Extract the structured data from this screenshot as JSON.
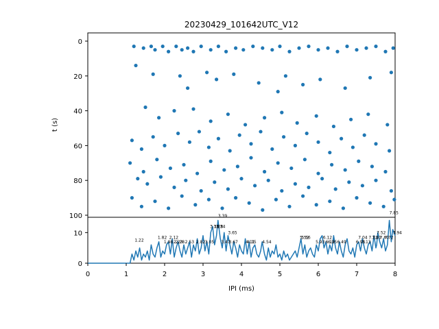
{
  "chart_data": [
    {
      "type": "scatter",
      "title": "20230429_101642UTC_V12",
      "xlabel": "",
      "ylabel": "t (s)",
      "xlim": [
        0,
        8
      ],
      "ylim": [
        100,
        0
      ],
      "y_inverted": true,
      "yticks": [
        "0",
        "20",
        "40",
        "60",
        "80",
        "100"
      ],
      "x_range_of_points": [
        1.1,
        8.0
      ],
      "color": "#1f77b4",
      "description_of_density": "dense bands near t=0-10, t=20-30, t=38-98",
      "points": [
        {
          "x": 1.2,
          "y": 3
        },
        {
          "x": 1.45,
          "y": 4
        },
        {
          "x": 1.65,
          "y": 3
        },
        {
          "x": 1.75,
          "y": 5
        },
        {
          "x": 1.95,
          "y": 3
        },
        {
          "x": 2.1,
          "y": 6
        },
        {
          "x": 2.3,
          "y": 3
        },
        {
          "x": 2.45,
          "y": 5
        },
        {
          "x": 2.6,
          "y": 4
        },
        {
          "x": 2.75,
          "y": 6
        },
        {
          "x": 2.95,
          "y": 3
        },
        {
          "x": 3.2,
          "y": 5
        },
        {
          "x": 3.4,
          "y": 3
        },
        {
          "x": 3.6,
          "y": 6
        },
        {
          "x": 3.85,
          "y": 4
        },
        {
          "x": 4.05,
          "y": 5
        },
        {
          "x": 4.3,
          "y": 3
        },
        {
          "x": 4.55,
          "y": 4
        },
        {
          "x": 4.8,
          "y": 5
        },
        {
          "x": 5.0,
          "y": 3
        },
        {
          "x": 5.25,
          "y": 6
        },
        {
          "x": 5.5,
          "y": 4
        },
        {
          "x": 5.75,
          "y": 3
        },
        {
          "x": 6.0,
          "y": 5
        },
        {
          "x": 6.25,
          "y": 4
        },
        {
          "x": 6.5,
          "y": 6
        },
        {
          "x": 6.75,
          "y": 3
        },
        {
          "x": 7.0,
          "y": 5
        },
        {
          "x": 7.25,
          "y": 4
        },
        {
          "x": 7.5,
          "y": 3
        },
        {
          "x": 7.75,
          "y": 6
        },
        {
          "x": 7.95,
          "y": 4
        },
        {
          "x": 1.25,
          "y": 14
        },
        {
          "x": 1.7,
          "y": 19
        },
        {
          "x": 2.4,
          "y": 20
        },
        {
          "x": 3.1,
          "y": 18
        },
        {
          "x": 3.35,
          "y": 22
        },
        {
          "x": 3.8,
          "y": 19
        },
        {
          "x": 4.45,
          "y": 24
        },
        {
          "x": 5.15,
          "y": 20
        },
        {
          "x": 5.6,
          "y": 25
        },
        {
          "x": 6.05,
          "y": 22
        },
        {
          "x": 6.7,
          "y": 27
        },
        {
          "x": 7.35,
          "y": 21
        },
        {
          "x": 7.9,
          "y": 18
        },
        {
          "x": 2.6,
          "y": 27
        },
        {
          "x": 4.95,
          "y": 29
        },
        {
          "x": 1.5,
          "y": 38
        },
        {
          "x": 1.85,
          "y": 44
        },
        {
          "x": 2.25,
          "y": 40
        },
        {
          "x": 2.75,
          "y": 39
        },
        {
          "x": 3.2,
          "y": 46
        },
        {
          "x": 3.65,
          "y": 42
        },
        {
          "x": 4.1,
          "y": 48
        },
        {
          "x": 4.6,
          "y": 44
        },
        {
          "x": 5.05,
          "y": 41
        },
        {
          "x": 5.45,
          "y": 47
        },
        {
          "x": 5.95,
          "y": 43
        },
        {
          "x": 6.4,
          "y": 49
        },
        {
          "x": 6.85,
          "y": 45
        },
        {
          "x": 7.3,
          "y": 42
        },
        {
          "x": 7.8,
          "y": 48
        },
        {
          "x": 1.15,
          "y": 57
        },
        {
          "x": 1.4,
          "y": 62
        },
        {
          "x": 1.7,
          "y": 55
        },
        {
          "x": 2.0,
          "y": 60
        },
        {
          "x": 2.35,
          "y": 53
        },
        {
          "x": 2.65,
          "y": 58
        },
        {
          "x": 2.9,
          "y": 52
        },
        {
          "x": 3.15,
          "y": 61
        },
        {
          "x": 3.4,
          "y": 56
        },
        {
          "x": 3.7,
          "y": 63
        },
        {
          "x": 3.95,
          "y": 54
        },
        {
          "x": 4.25,
          "y": 59
        },
        {
          "x": 4.5,
          "y": 52
        },
        {
          "x": 4.8,
          "y": 62
        },
        {
          "x": 5.1,
          "y": 55
        },
        {
          "x": 5.4,
          "y": 60
        },
        {
          "x": 5.7,
          "y": 53
        },
        {
          "x": 6.0,
          "y": 58
        },
        {
          "x": 6.3,
          "y": 64
        },
        {
          "x": 6.6,
          "y": 56
        },
        {
          "x": 6.9,
          "y": 61
        },
        {
          "x": 7.2,
          "y": 54
        },
        {
          "x": 7.5,
          "y": 59
        },
        {
          "x": 7.85,
          "y": 63
        },
        {
          "x": 1.1,
          "y": 70
        },
        {
          "x": 1.45,
          "y": 75
        },
        {
          "x": 1.8,
          "y": 68
        },
        {
          "x": 2.15,
          "y": 73
        },
        {
          "x": 2.5,
          "y": 71
        },
        {
          "x": 2.85,
          "y": 76
        },
        {
          "x": 3.2,
          "y": 69
        },
        {
          "x": 3.55,
          "y": 74
        },
        {
          "x": 3.9,
          "y": 72
        },
        {
          "x": 4.25,
          "y": 67
        },
        {
          "x": 4.6,
          "y": 75
        },
        {
          "x": 4.95,
          "y": 70
        },
        {
          "x": 5.3,
          "y": 73
        },
        {
          "x": 5.65,
          "y": 68
        },
        {
          "x": 6.0,
          "y": 76
        },
        {
          "x": 6.35,
          "y": 71
        },
        {
          "x": 6.7,
          "y": 74
        },
        {
          "x": 7.05,
          "y": 69
        },
        {
          "x": 7.4,
          "y": 72
        },
        {
          "x": 7.75,
          "y": 75
        },
        {
          "x": 1.3,
          "y": 79
        },
        {
          "x": 1.55,
          "y": 82
        },
        {
          "x": 1.9,
          "y": 78
        },
        {
          "x": 2.25,
          "y": 84
        },
        {
          "x": 2.55,
          "y": 80
        },
        {
          "x": 2.95,
          "y": 86
        },
        {
          "x": 3.3,
          "y": 81
        },
        {
          "x": 3.65,
          "y": 85
        },
        {
          "x": 4.0,
          "y": 79
        },
        {
          "x": 4.35,
          "y": 83
        },
        {
          "x": 4.7,
          "y": 80
        },
        {
          "x": 5.05,
          "y": 86
        },
        {
          "x": 5.4,
          "y": 82
        },
        {
          "x": 5.75,
          "y": 84
        },
        {
          "x": 6.1,
          "y": 79
        },
        {
          "x": 6.45,
          "y": 85
        },
        {
          "x": 6.8,
          "y": 81
        },
        {
          "x": 7.15,
          "y": 83
        },
        {
          "x": 7.5,
          "y": 80
        },
        {
          "x": 7.9,
          "y": 86
        },
        {
          "x": 1.15,
          "y": 90
        },
        {
          "x": 1.4,
          "y": 95
        },
        {
          "x": 1.75,
          "y": 92
        },
        {
          "x": 2.1,
          "y": 96
        },
        {
          "x": 2.45,
          "y": 89
        },
        {
          "x": 2.8,
          "y": 94
        },
        {
          "x": 3.15,
          "y": 91
        },
        {
          "x": 3.5,
          "y": 96
        },
        {
          "x": 3.85,
          "y": 90
        },
        {
          "x": 4.2,
          "y": 93
        },
        {
          "x": 4.55,
          "y": 97
        },
        {
          "x": 4.9,
          "y": 91
        },
        {
          "x": 5.25,
          "y": 95
        },
        {
          "x": 5.6,
          "y": 89
        },
        {
          "x": 5.95,
          "y": 94
        },
        {
          "x": 6.3,
          "y": 92
        },
        {
          "x": 6.65,
          "y": 96
        },
        {
          "x": 7.0,
          "y": 90
        },
        {
          "x": 7.35,
          "y": 93
        },
        {
          "x": 7.7,
          "y": 95
        },
        {
          "x": 7.98,
          "y": 91
        }
      ]
    },
    {
      "type": "line",
      "title": "",
      "xlabel": "IPI (ms)",
      "ylabel": "",
      "xlim": [
        0,
        8
      ],
      "ylim": [
        0,
        15
      ],
      "xticks": [
        "0",
        "1",
        "2",
        "3",
        "4",
        "5",
        "6",
        "7",
        "8"
      ],
      "yticks": [
        "0",
        "10"
      ],
      "color": "#1f77b4",
      "series": [
        {
          "x": [
            0,
            1.0,
            1.1,
            1.15,
            1.2,
            1.25,
            1.3,
            1.35,
            1.4,
            1.45,
            1.5,
            1.55,
            1.6,
            1.65,
            1.7,
            1.75,
            1.8,
            1.85,
            1.9,
            1.95,
            2.0,
            2.05,
            2.1,
            2.15,
            2.2,
            2.25,
            2.3,
            2.35,
            2.4,
            2.45,
            2.5,
            2.55,
            2.6,
            2.65,
            2.7,
            2.75,
            2.8,
            2.85,
            2.9,
            2.95,
            3.0,
            3.05,
            3.1,
            3.15,
            3.2,
            3.25,
            3.3,
            3.35,
            3.39,
            3.45,
            3.5,
            3.55,
            3.6,
            3.65,
            3.7,
            3.75,
            3.8,
            3.85,
            3.9,
            3.95,
            4.0,
            4.05,
            4.1,
            4.15,
            4.2,
            4.25,
            4.3,
            4.35,
            4.4,
            4.45,
            4.5,
            4.54,
            4.6,
            4.65,
            4.7,
            4.75,
            4.8,
            4.85,
            4.9,
            4.95,
            5.0,
            5.05,
            5.1,
            5.15,
            5.2,
            5.25,
            5.3,
            5.35,
            5.4,
            5.45,
            5.5,
            5.55,
            5.6,
            5.65,
            5.7,
            5.75,
            5.8,
            5.85,
            5.9,
            5.95,
            6.0,
            6.05,
            6.1,
            6.15,
            6.2,
            6.25,
            6.3,
            6.35,
            6.4,
            6.45,
            6.5,
            6.55,
            6.6,
            6.65,
            6.7,
            6.75,
            6.8,
            6.85,
            6.9,
            6.95,
            7.0,
            7.05,
            7.1,
            7.15,
            7.2,
            7.25,
            7.3,
            7.35,
            7.4,
            7.45,
            7.5,
            7.52,
            7.55,
            7.6,
            7.65,
            7.7,
            7.75,
            7.8,
            7.85,
            7.9,
            7.94,
            8.0
          ],
          "values": [
            0,
            0,
            0,
            3,
            1,
            4,
            2,
            5,
            1,
            3,
            2,
            4,
            1,
            6,
            3,
            2,
            5,
            7,
            2,
            4,
            3,
            6,
            7,
            3,
            8,
            2,
            5,
            7,
            4,
            2,
            6,
            3,
            5,
            7,
            2,
            6,
            4,
            8,
            3,
            5,
            9,
            4,
            7,
            3,
            10,
            12,
            6,
            9,
            14,
            8,
            5,
            10,
            4,
            9,
            6,
            3,
            7,
            5,
            2,
            6,
            4,
            3,
            8,
            3,
            7,
            2,
            5,
            6,
            3,
            2,
            4,
            7,
            3,
            1,
            5,
            2,
            4,
            3,
            6,
            2,
            3,
            1,
            4,
            2,
            3,
            1,
            2,
            3,
            4,
            2,
            5,
            8,
            3,
            6,
            2,
            4,
            5,
            3,
            2,
            6,
            4,
            8,
            9,
            5,
            7,
            3,
            6,
            4,
            9,
            5,
            3,
            7,
            4,
            2,
            6,
            8,
            4,
            3,
            5,
            2,
            6,
            7,
            4,
            8,
            5,
            3,
            6,
            7,
            4,
            9,
            5,
            6,
            10,
            7,
            5,
            8,
            4,
            6,
            14,
            7,
            11,
            9
          ]
        }
      ],
      "annotations": [
        {
          "text": "1.22",
          "x": 1.22,
          "y": 7
        },
        {
          "text": "1.82",
          "x": 1.82,
          "y": 8
        },
        {
          "text": "1.98",
          "x": 1.98,
          "y": 6.5
        },
        {
          "text": "2.12",
          "x": 2.12,
          "y": 8
        },
        {
          "text": "2.23",
          "x": 2.23,
          "y": 6.5
        },
        {
          "text": "2.28",
          "x": 2.28,
          "y": 6.5
        },
        {
          "text": "2.53",
          "x": 2.53,
          "y": 6.5
        },
        {
          "text": "2.82",
          "x": 2.82,
          "y": 6.5
        },
        {
          "text": "3.05",
          "x": 3.05,
          "y": 6.5
        },
        {
          "text": "3.18",
          "x": 3.18,
          "y": 11.5
        },
        {
          "text": "3.28",
          "x": 3.28,
          "y": 11.5
        },
        {
          "text": "3.34",
          "x": 3.34,
          "y": 11.5
        },
        {
          "text": "3.39",
          "x": 3.39,
          "y": 15
        },
        {
          "text": "3.47",
          "x": 3.47,
          "y": 6.5
        },
        {
          "text": "3.65",
          "x": 3.65,
          "y": 9.5
        },
        {
          "text": "3.67",
          "x": 3.67,
          "y": 6.5
        },
        {
          "text": "4.11",
          "x": 4.11,
          "y": 6.5
        },
        {
          "text": "4.15",
          "x": 4.15,
          "y": 6.5
        },
        {
          "text": "4.54",
          "x": 4.54,
          "y": 6.5
        },
        {
          "text": "5.52",
          "x": 5.52,
          "y": 8
        },
        {
          "text": "5.56",
          "x": 5.56,
          "y": 8
        },
        {
          "text": "5.93",
          "x": 5.93,
          "y": 6.5
        },
        {
          "text": "6.12",
          "x": 6.12,
          "y": 8
        },
        {
          "text": "6.19",
          "x": 6.19,
          "y": 6.5
        },
        {
          "text": "6.25",
          "x": 6.25,
          "y": 6.5
        },
        {
          "text": "6.49",
          "x": 6.49,
          "y": 6.5
        },
        {
          "text": "6.98",
          "x": 6.98,
          "y": 6.5
        },
        {
          "text": "7.04",
          "x": 7.04,
          "y": 8
        },
        {
          "text": "7.13",
          "x": 7.13,
          "y": 6.5
        },
        {
          "text": "7.31",
          "x": 7.31,
          "y": 8
        },
        {
          "text": "7.40",
          "x": 7.4,
          "y": 8
        },
        {
          "text": "7.52",
          "x": 7.52,
          "y": 9.5
        },
        {
          "text": "7.60",
          "x": 7.6,
          "y": 8
        },
        {
          "text": "7.72",
          "x": 7.72,
          "y": 8
        },
        {
          "text": "7.85",
          "x": 7.85,
          "y": 16
        },
        {
          "text": "7.94",
          "x": 7.94,
          "y": 9.5
        }
      ]
    }
  ]
}
